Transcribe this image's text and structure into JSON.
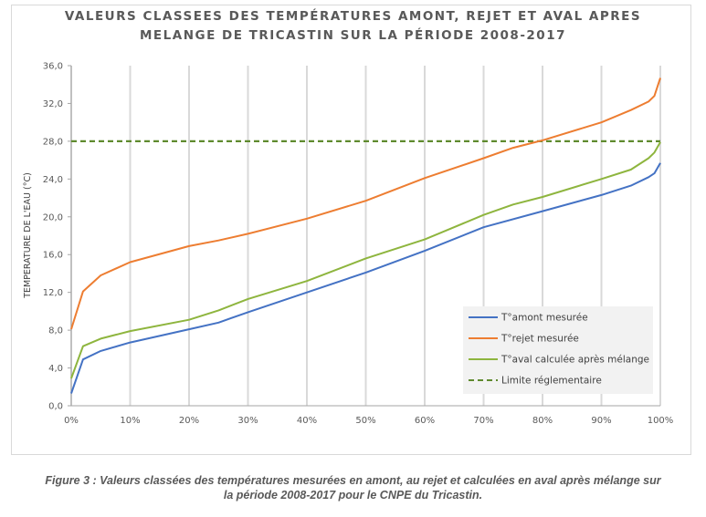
{
  "chart_data": {
    "type": "line",
    "title_lines": [
      "VALEURS CLASSEES DES TEMPÉRATURES AMONT, REJET ET AVAL APRES",
      "MELANGE  DE TRICASTIN SUR LA PÉRIODE 2008-2017"
    ],
    "xlabel": "",
    "ylabel": "TEMPERATURE DE L'EAU (°C)",
    "xlim": [
      0,
      100
    ],
    "ylim": [
      0,
      36
    ],
    "x_ticks": [
      "0%",
      "10%",
      "20%",
      "30%",
      "40%",
      "50%",
      "60%",
      "70%",
      "80%",
      "90%",
      "100%"
    ],
    "y_ticks": [
      "0,0",
      "4,0",
      "8,0",
      "12,0",
      "16,0",
      "20,0",
      "24,0",
      "28,0",
      "32,0",
      "36,0"
    ],
    "grid": "vertical",
    "legend_position": "bottom-right",
    "series": [
      {
        "name": "T°amont mesurée",
        "color": "#4472c4",
        "dash": false,
        "x": [
          0,
          2,
          5,
          10,
          20,
          25,
          30,
          40,
          50,
          60,
          70,
          80,
          90,
          95,
          98,
          99,
          100
        ],
        "y": [
          1.3,
          4.9,
          5.8,
          6.7,
          8.1,
          8.8,
          9.9,
          12.0,
          14.1,
          16.4,
          18.9,
          20.6,
          22.3,
          23.3,
          24.2,
          24.6,
          25.7
        ]
      },
      {
        "name": "T°rejet mesurée",
        "color": "#ed7d31",
        "dash": false,
        "x": [
          0,
          2,
          5,
          10,
          20,
          25,
          30,
          40,
          50,
          60,
          70,
          75,
          80,
          90,
          95,
          98,
          99,
          100
        ],
        "y": [
          8.1,
          12.1,
          13.8,
          15.2,
          16.9,
          17.5,
          18.2,
          19.8,
          21.7,
          24.1,
          26.2,
          27.3,
          28.1,
          30.0,
          31.3,
          32.2,
          32.8,
          34.7
        ]
      },
      {
        "name": "T°aval calculée après mélange",
        "color": "#8eb53e",
        "dash": false,
        "x": [
          0,
          2,
          5,
          10,
          20,
          25,
          30,
          40,
          50,
          60,
          70,
          75,
          80,
          90,
          95,
          98,
          99,
          100
        ],
        "y": [
          2.9,
          6.3,
          7.1,
          7.9,
          9.1,
          10.1,
          11.3,
          13.2,
          15.6,
          17.6,
          20.2,
          21.3,
          22.1,
          24.0,
          25.0,
          26.2,
          26.8,
          27.9
        ]
      },
      {
        "name": "Limite réglementaire",
        "color": "#5f8a2e",
        "dash": true,
        "x": [
          0,
          100
        ],
        "y": [
          28,
          28
        ]
      }
    ]
  },
  "caption_lines": [
    "Figure 3 : Valeurs classées des températures mesurées en amont, au rejet et calculées en aval après mélange sur",
    "la période 2008-2017 pour le CNPE du Tricastin."
  ]
}
